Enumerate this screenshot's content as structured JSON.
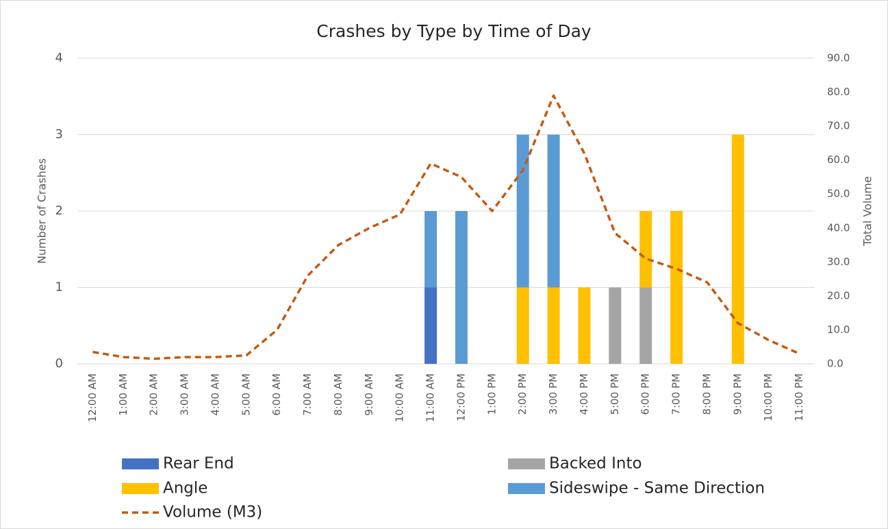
{
  "chart_data": {
    "type": "bar",
    "stacked": true,
    "title": "Crashes by Type by Time of Day",
    "y_label": "Number of Crashes",
    "y2_label": "Total Volume",
    "categories": [
      "12:00 AM",
      "1:00 AM",
      "2:00 AM",
      "3:00 AM",
      "4:00 AM",
      "5:00 AM",
      "6:00 AM",
      "7:00 AM",
      "8:00 AM",
      "9:00 AM",
      "10:00 AM",
      "11:00 AM",
      "12:00 PM",
      "1:00 PM",
      "2:00 PM",
      "3:00 PM",
      "4:00 PM",
      "5:00 PM",
      "6:00 PM",
      "7:00 PM",
      "8:00 PM",
      "9:00 PM",
      "10:00 PM",
      "11:00 PM"
    ],
    "series": [
      {
        "name": "Rear End",
        "color": "#4472c4",
        "type": "bar",
        "values": [
          0,
          0,
          0,
          0,
          0,
          0,
          0,
          0,
          0,
          0,
          0,
          1,
          0,
          0,
          0,
          0,
          0,
          0,
          0,
          0,
          0,
          0,
          0,
          0
        ]
      },
      {
        "name": "Backed Into",
        "color": "#a5a5a5",
        "type": "bar",
        "values": [
          0,
          0,
          0,
          0,
          0,
          0,
          0,
          0,
          0,
          0,
          0,
          0,
          0,
          0,
          0,
          0,
          0,
          1,
          1,
          0,
          0,
          0,
          0,
          0
        ]
      },
      {
        "name": "Angle",
        "color": "#ffc000",
        "type": "bar",
        "values": [
          0,
          0,
          0,
          0,
          0,
          0,
          0,
          0,
          0,
          0,
          0,
          0,
          0,
          0,
          1,
          1,
          1,
          0,
          1,
          2,
          0,
          3,
          0,
          0
        ]
      },
      {
        "name": "Sideswipe - Same Direction",
        "color": "#5b9bd5",
        "type": "bar",
        "values": [
          0,
          0,
          0,
          0,
          0,
          0,
          0,
          0,
          0,
          0,
          0,
          1,
          2,
          0,
          2,
          2,
          0,
          0,
          0,
          0,
          0,
          0,
          0,
          0
        ]
      },
      {
        "name": "Volume (M3)",
        "color": "#c55a11",
        "type": "line",
        "axis": "y2",
        "dashed": true,
        "values": [
          3.5,
          2,
          1.5,
          2,
          2,
          2.5,
          10,
          26,
          35,
          40,
          44,
          59,
          55,
          45,
          57,
          79,
          62,
          38.5,
          31,
          28,
          24,
          12,
          7,
          3
        ]
      }
    ],
    "ylim": [
      0,
      4
    ],
    "yticks": [
      0,
      1,
      2,
      3,
      4
    ],
    "y2lim": [
      0,
      90
    ],
    "y2ticks": [
      {
        "value": 0,
        "label": "0.0"
      },
      {
        "value": 10,
        "label": "10.0"
      },
      {
        "value": 20,
        "label": "20.0"
      },
      {
        "value": 30,
        "label": "30.0"
      },
      {
        "value": 40,
        "label": "40.0"
      },
      {
        "value": 50,
        "label": "50.0"
      },
      {
        "value": 60,
        "label": "60.0"
      },
      {
        "value": 70,
        "label": "70.0"
      },
      {
        "value": 80,
        "label": "80.0"
      },
      {
        "value": 90,
        "label": "90.0"
      }
    ],
    "grid": true,
    "legend": "bottom"
  }
}
